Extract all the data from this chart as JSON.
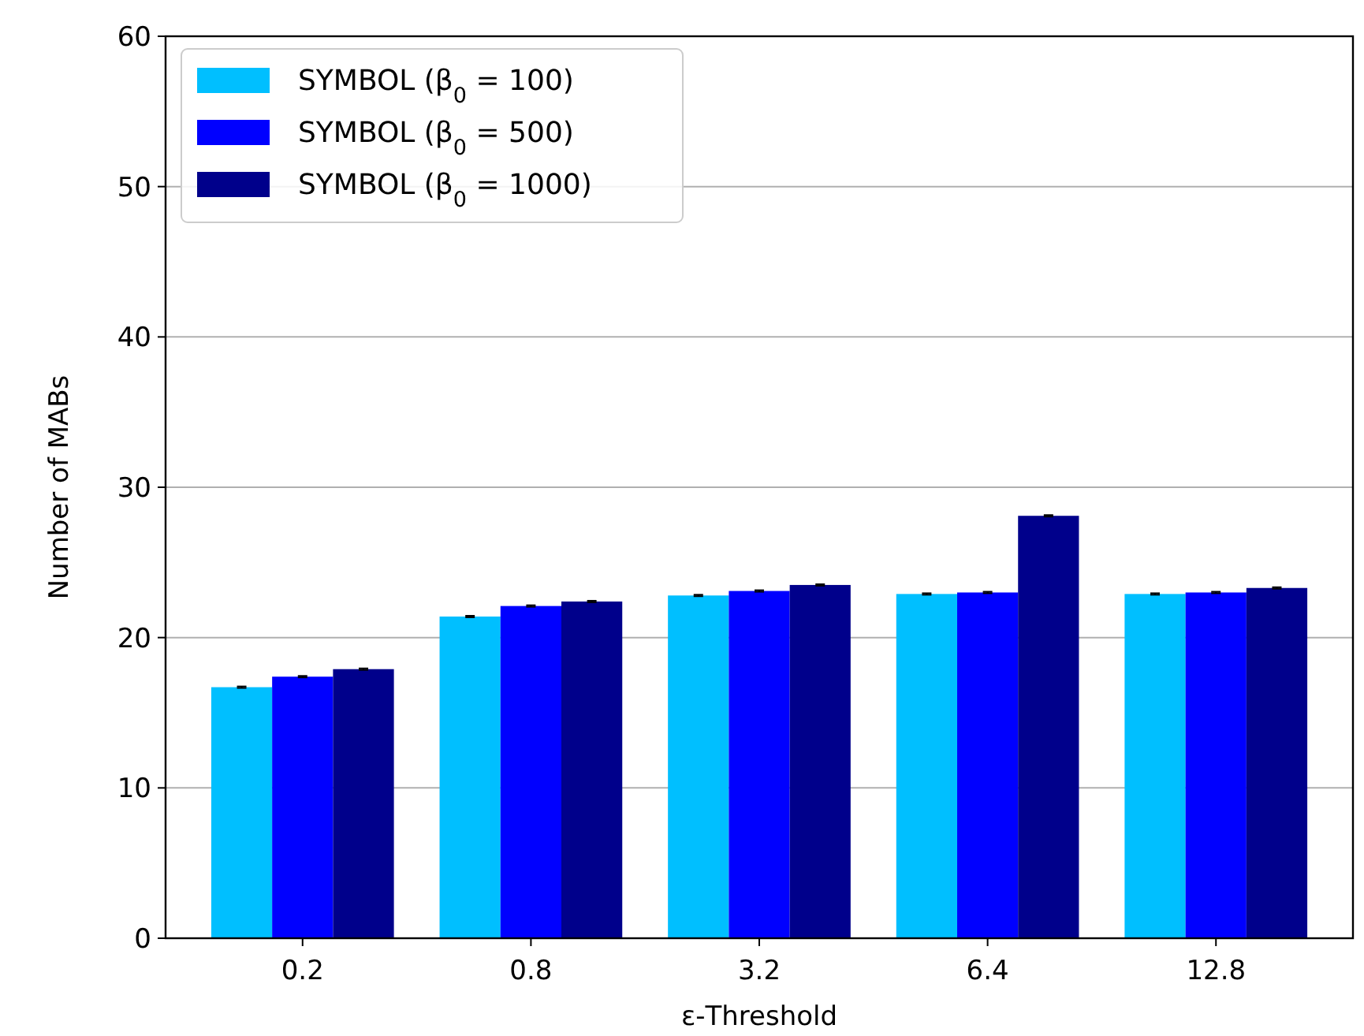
{
  "chart_data": {
    "type": "bar",
    "xlabel": "ε-Threshold",
    "ylabel": "Number of MABs",
    "categories": [
      "0.2",
      "0.8",
      "3.2",
      "6.4",
      "12.8"
    ],
    "series": [
      {
        "name": "SYMBOL (β$_{0}$ = 100)",
        "color": "#00bfff",
        "values": [
          16.7,
          21.4,
          22.8,
          22.9,
          22.9
        ],
        "errors": [
          0.05,
          0.05,
          0.05,
          0.05,
          0.05
        ]
      },
      {
        "name": "SYMBOL (β$_{0}$ = 500)",
        "color": "#0000ff",
        "values": [
          17.4,
          22.1,
          23.1,
          23.0,
          23.0
        ],
        "errors": [
          0.05,
          0.05,
          0.05,
          0.05,
          0.05
        ]
      },
      {
        "name": "SYMBOL (β$_{0}$ = 1000)",
        "color": "#00008b",
        "values": [
          17.9,
          22.4,
          23.5,
          28.1,
          23.3
        ],
        "errors": [
          0.05,
          0.05,
          0.05,
          0.05,
          0.05
        ]
      }
    ],
    "ylim": [
      0,
      60
    ],
    "yticks": [
      0,
      10,
      20,
      30,
      40,
      50,
      60
    ],
    "grid": "y",
    "legend": "top left"
  }
}
